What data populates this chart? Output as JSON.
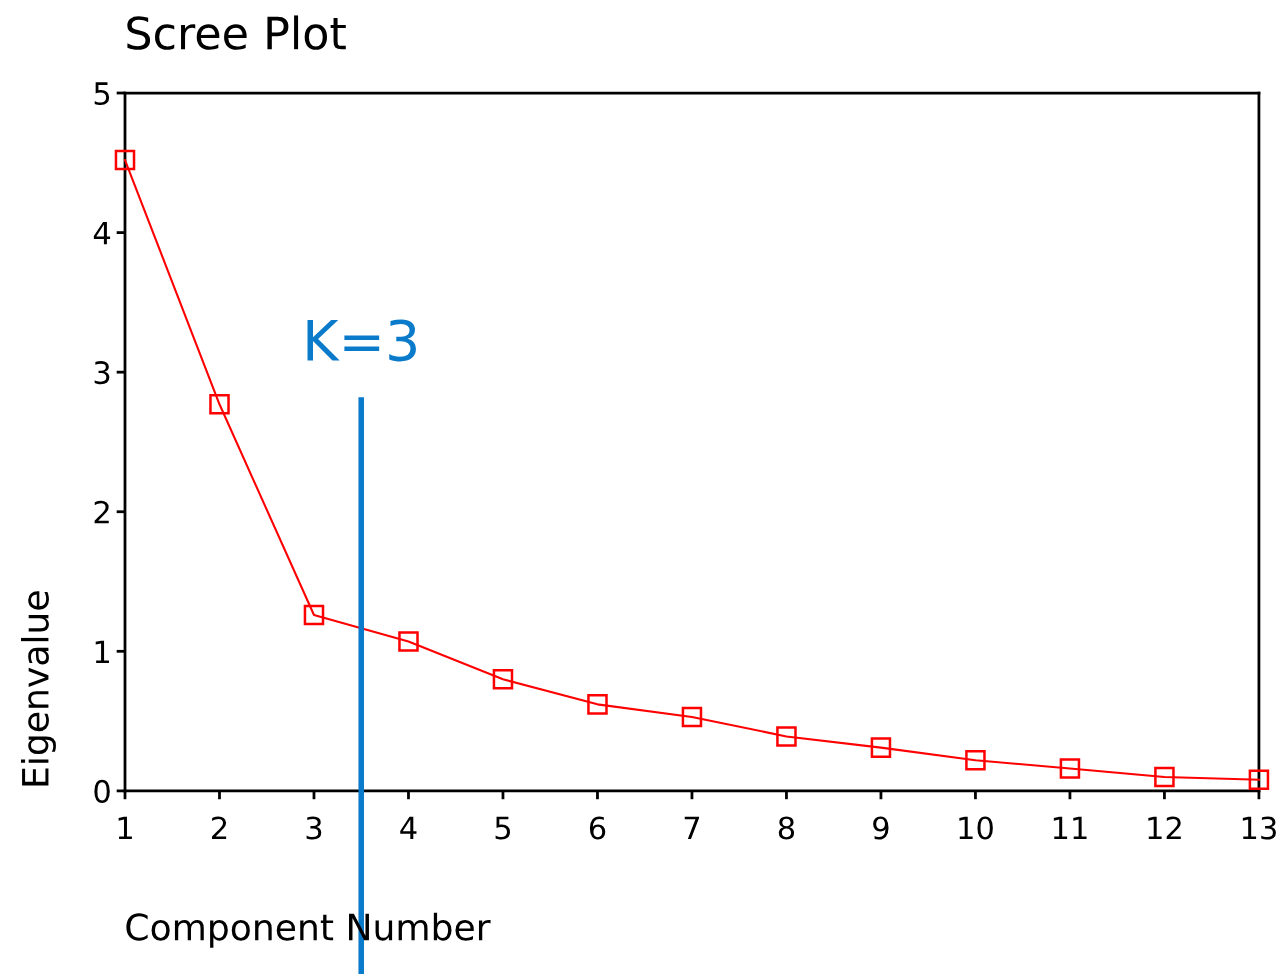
{
  "chart_data": {
    "type": "line",
    "title": "Scree Plot",
    "xlabel": "Component Number",
    "ylabel": "Eigenvalue",
    "x": [
      1,
      2,
      3,
      4,
      5,
      6,
      7,
      8,
      9,
      10,
      11,
      12,
      13
    ],
    "series": [
      {
        "color": "#ff0000",
        "values": [
          4.52,
          2.77,
          1.26,
          1.07,
          0.8,
          0.62,
          0.53,
          0.39,
          0.31,
          0.22,
          0.16,
          0.1,
          0.08
        ]
      }
    ],
    "xlim": [
      1,
      13
    ],
    "xticks": [
      1,
      2,
      3,
      4,
      5,
      6,
      7,
      8,
      9,
      10,
      11,
      12,
      13
    ],
    "ylim": [
      0,
      5
    ],
    "yticks": [
      0,
      1,
      2,
      3,
      4,
      5
    ],
    "marker": "square",
    "line_style": "solid",
    "grid": false,
    "legend": false,
    "ref_lines": [
      {
        "axis": "x",
        "value": 3.5,
        "label": "K=3",
        "color": "#0a7acb"
      }
    ]
  }
}
